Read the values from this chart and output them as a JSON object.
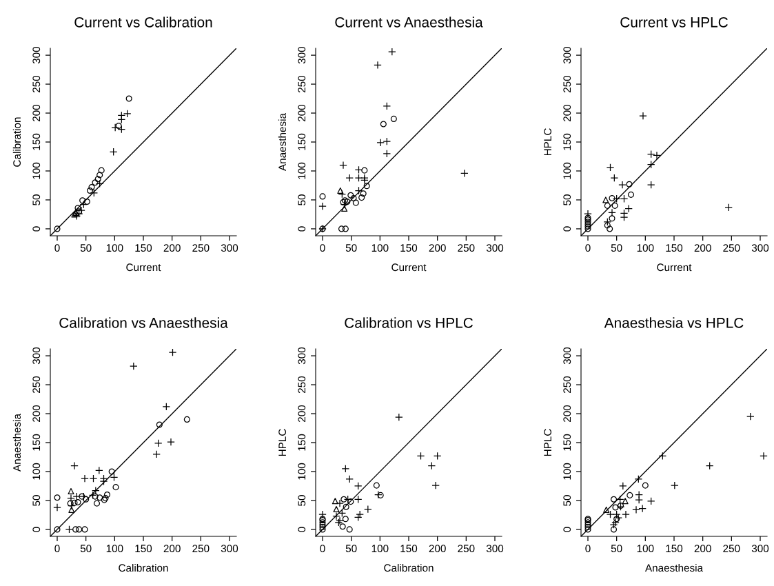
{
  "chart_data": [
    {
      "type": "scatter",
      "title": "Current vs Calibration",
      "xlabel": "Current",
      "ylabel": "Calibration",
      "xlim": [
        -12,
        312
      ],
      "ylim": [
        -12,
        312
      ],
      "xticks": [
        0,
        50,
        100,
        150,
        200,
        250,
        300
      ],
      "yticks": [
        0,
        50,
        100,
        150,
        200,
        250,
        300
      ],
      "grid": false,
      "series": [
        {
          "type": "scatter",
          "marker": "circle",
          "color": "#000000",
          "x": [
            125,
            107,
            77,
            74,
            71,
            66,
            60,
            57,
            44,
            52,
            36,
            38,
            0
          ],
          "values": [
            225,
            178,
            101,
            93,
            86,
            80,
            72,
            66,
            49,
            47,
            36,
            30,
            0
          ]
        },
        {
          "type": "scatter",
          "marker": "cross",
          "color": "#000000",
          "x": [
            98,
            101,
            112,
            112,
            112,
            122,
            64,
            74,
            46,
            34,
            38,
            42
          ],
          "values": [
            133,
            175,
            172,
            189,
            196,
            199,
            62,
            78,
            42,
            22,
            26,
            32
          ]
        },
        {
          "type": "scatter",
          "marker": "triangle",
          "color": "#000000",
          "x": [
            30,
            33
          ],
          "values": [
            25,
            28
          ]
        },
        {
          "type": "line",
          "color": "#000000",
          "x": [
            -12,
            312
          ],
          "values": [
            -12,
            312
          ]
        }
      ]
    },
    {
      "type": "scatter",
      "title": "Current vs Anaesthesia",
      "xlabel": "Current",
      "ylabel": "Anaesthesia",
      "xlim": [
        -12,
        312
      ],
      "ylim": [
        -12,
        312
      ],
      "xticks": [
        0,
        50,
        100,
        150,
        200,
        250,
        300
      ],
      "yticks": [
        0,
        50,
        100,
        150,
        200,
        250,
        300
      ],
      "grid": false,
      "series": [
        {
          "type": "scatter",
          "marker": "circle",
          "color": "#000000",
          "x": [
            124,
            106,
            73,
            77,
            71,
            68,
            58,
            49,
            54,
            39,
            36,
            43,
            0,
            0,
            33,
            40
          ],
          "values": [
            190,
            181,
            101,
            74,
            61,
            54,
            45,
            58,
            53,
            49,
            46,
            47,
            56,
            0,
            0,
            0
          ]
        },
        {
          "type": "scatter",
          "marker": "cross",
          "color": "#000000",
          "x": [
            121,
            96,
            112,
            101,
            112,
            112,
            247,
            36,
            47,
            63,
            63,
            73,
            73,
            63,
            34,
            38,
            0,
            0
          ],
          "values": [
            306,
            283,
            212,
            149,
            151,
            130,
            96,
            110,
            88,
            102,
            88,
            88,
            84,
            66,
            60,
            42,
            39,
            0
          ]
        },
        {
          "type": "scatter",
          "marker": "triangle",
          "color": "#000000",
          "x": [
            31,
            38
          ],
          "values": [
            66,
            35
          ]
        },
        {
          "type": "line",
          "color": "#000000",
          "x": [
            -12,
            312
          ],
          "values": [
            -12,
            312
          ]
        }
      ]
    },
    {
      "type": "scatter",
      "title": "Current vs HPLC",
      "xlabel": "Current",
      "ylabel": "HPLC",
      "xlim": [
        -12,
        312
      ],
      "ylim": [
        -12,
        312
      ],
      "xticks": [
        0,
        50,
        100,
        150,
        200,
        250,
        300
      ],
      "yticks": [
        0,
        50,
        100,
        150,
        200,
        250,
        300
      ],
      "grid": false,
      "series": [
        {
          "type": "scatter",
          "marker": "circle",
          "color": "#000000",
          "x": [
            72,
            75,
            42,
            47,
            34,
            42,
            34,
            38,
            0,
            0,
            0,
            0,
            0,
            0
          ],
          "values": [
            77,
            59,
            53,
            40,
            40,
            18,
            6,
            0,
            0,
            4,
            8,
            12,
            16,
            19
          ]
        },
        {
          "type": "scatter",
          "marker": "cross",
          "color": "#000000",
          "x": [
            96,
            110,
            120,
            110,
            110,
            245,
            39,
            46,
            60,
            63,
            71,
            63,
            63,
            50,
            42,
            34,
            0
          ],
          "values": [
            195,
            129,
            127,
            111,
            76,
            37,
            106,
            88,
            76,
            52,
            35,
            27,
            20,
            52,
            28,
            12,
            26
          ]
        },
        {
          "type": "scatter",
          "marker": "triangle",
          "color": "#000000",
          "x": [
            31
          ],
          "values": [
            50
          ]
        },
        {
          "type": "line",
          "color": "#000000",
          "x": [
            -12,
            312
          ],
          "values": [
            -12,
            312
          ]
        }
      ]
    },
    {
      "type": "scatter",
      "title": "Calibration vs Anaesthesia",
      "xlabel": "Calibration",
      "ylabel": "Anaesthesia",
      "xlim": [
        -12,
        312
      ],
      "ylim": [
        -12,
        312
      ],
      "xticks": [
        0,
        50,
        100,
        150,
        200,
        250,
        300
      ],
      "yticks": [
        0,
        50,
        100,
        150,
        200,
        250,
        300
      ],
      "grid": false,
      "series": [
        {
          "type": "scatter",
          "marker": "circle",
          "color": "#000000",
          "x": [
            226,
            178,
            95,
            102,
            87,
            84,
            82,
            74,
            69,
            66,
            50,
            43,
            36,
            30,
            23,
            0,
            0,
            32,
            38,
            48
          ],
          "values": [
            190,
            181,
            100,
            73,
            60,
            54,
            51,
            55,
            45,
            57,
            52,
            57,
            47,
            46,
            45,
            55,
            0,
            0,
            0,
            0
          ]
        },
        {
          "type": "scatter",
          "marker": "cross",
          "color": "#000000",
          "x": [
            201,
            133,
            190,
            176,
            198,
            173,
            30,
            73,
            48,
            63,
            81,
            99,
            81,
            67,
            62,
            46,
            34,
            24,
            25,
            0,
            21
          ],
          "values": [
            306,
            282,
            212,
            149,
            151,
            130,
            110,
            102,
            88,
            88,
            88,
            90,
            83,
            67,
            59,
            57,
            57,
            54,
            41,
            38,
            0
          ]
        },
        {
          "type": "scatter",
          "marker": "triangle",
          "color": "#000000",
          "x": [
            24,
            25
          ],
          "values": [
            66,
            34
          ]
        },
        {
          "type": "line",
          "color": "#000000",
          "x": [
            -12,
            312
          ],
          "values": [
            -12,
            312
          ]
        }
      ]
    },
    {
      "type": "scatter",
      "title": "Calibration vs HPLC",
      "xlabel": "Calibration",
      "ylabel": "HPLC",
      "xlim": [
        -12,
        312
      ],
      "ylim": [
        -12,
        312
      ],
      "xticks": [
        0,
        50,
        100,
        150,
        200,
        250,
        300
      ],
      "yticks": [
        0,
        50,
        100,
        150,
        200,
        250,
        300
      ],
      "grid": false,
      "series": [
        {
          "type": "scatter",
          "marker": "circle",
          "color": "#000000",
          "x": [
            94,
            101,
            37,
            49,
            41,
            47,
            35,
            40,
            0,
            0,
            0,
            0,
            0,
            0
          ],
          "values": [
            76,
            59,
            52,
            48,
            39,
            0,
            5,
            18,
            0,
            4,
            8,
            12,
            16,
            18
          ]
        },
        {
          "type": "scatter",
          "marker": "cross",
          "color": "#000000",
          "x": [
            133,
            171,
            200,
            190,
            197,
            40,
            47,
            62,
            97,
            62,
            79,
            65,
            62,
            44,
            30,
            34,
            24,
            0,
            28,
            30
          ],
          "values": [
            194,
            127,
            127,
            110,
            76,
            105,
            87,
            75,
            60,
            52,
            35,
            26,
            21,
            52,
            45,
            28,
            23,
            26,
            12,
            15
          ]
        },
        {
          "type": "scatter",
          "marker": "triangle",
          "color": "#000000",
          "x": [
            22,
            24
          ],
          "values": [
            49,
            35
          ]
        },
        {
          "type": "line",
          "color": "#000000",
          "x": [
            -12,
            312
          ],
          "values": [
            -12,
            312
          ]
        }
      ]
    },
    {
      "type": "scatter",
      "title": "Anaesthesia vs HPLC",
      "xlabel": "Anaesthesia",
      "ylabel": "HPLC",
      "xlim": [
        -12,
        312
      ],
      "ylim": [
        -12,
        312
      ],
      "xticks": [
        0,
        50,
        100,
        150,
        200,
        250,
        300
      ],
      "yticks": [
        0,
        50,
        100,
        150,
        200,
        250,
        300
      ],
      "grid": false,
      "series": [
        {
          "type": "scatter",
          "marker": "circle",
          "color": "#000000",
          "x": [
            100,
            73,
            45,
            48,
            57,
            45,
            50,
            0,
            0,
            0,
            0,
            0,
            0
          ],
          "values": [
            76,
            59,
            52,
            38,
            41,
            0,
            18,
            0,
            4,
            8,
            12,
            16,
            18
          ]
        },
        {
          "type": "scatter",
          "marker": "cross",
          "color": "#000000",
          "x": [
            283,
            306,
            130,
            212,
            151,
            88,
            61,
            89,
            89,
            110,
            95,
            84,
            56,
            57,
            39,
            50,
            66,
            48,
            45,
            53
          ],
          "values": [
            195,
            127,
            127,
            110,
            76,
            87,
            75,
            60,
            51,
            49,
            36,
            34,
            52,
            39,
            26,
            26,
            26,
            12,
            8,
            20
          ]
        },
        {
          "type": "scatter",
          "marker": "triangle",
          "color": "#000000",
          "x": [
            65,
            32
          ],
          "values": [
            49,
            34
          ]
        },
        {
          "type": "line",
          "color": "#000000",
          "x": [
            -12,
            312
          ],
          "values": [
            -12,
            312
          ]
        }
      ]
    }
  ]
}
